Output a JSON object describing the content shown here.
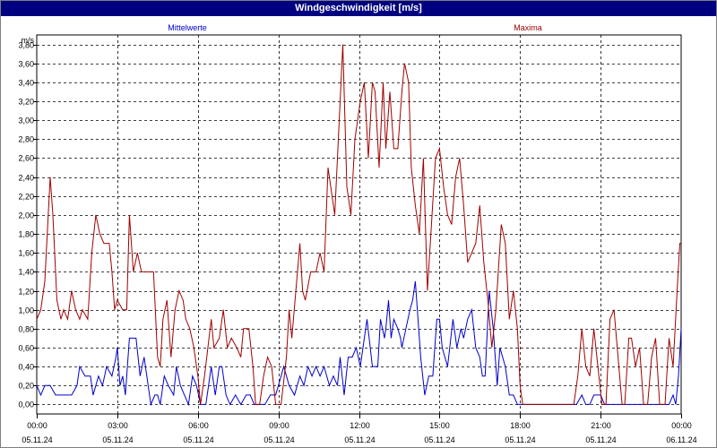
{
  "window": {
    "title": "Windgeschwindigkeit [m/s]"
  },
  "chart_data": {
    "type": "line",
    "title": "Windgeschwindigkeit [m/s]",
    "ylabel": "m/s",
    "xlabel": "",
    "ylim": [
      -0.1,
      3.9
    ],
    "xlim_hours": [
      0,
      24
    ],
    "grid": true,
    "yticks": [
      "0,00",
      "0,20",
      "0,40",
      "0,60",
      "0,80",
      "1,00",
      "1,20",
      "1,40",
      "1,60",
      "1,80",
      "2,00",
      "2,20",
      "2,40",
      "2,60",
      "2,80",
      "3,00",
      "3,20",
      "3,40",
      "3,60",
      "3,80"
    ],
    "ytick_values": [
      0,
      0.2,
      0.4,
      0.6,
      0.8,
      1.0,
      1.2,
      1.4,
      1.6,
      1.8,
      2.0,
      2.2,
      2.4,
      2.6,
      2.8,
      3.0,
      3.2,
      3.4,
      3.6,
      3.8
    ],
    "xticks": [
      {
        "hour": 0,
        "time": "00:00",
        "date": "05.11.24"
      },
      {
        "hour": 3,
        "time": "03:00",
        "date": "05.11.24"
      },
      {
        "hour": 6,
        "time": "06:00",
        "date": "05.11.24"
      },
      {
        "hour": 9,
        "time": "09:00",
        "date": "05.11.24"
      },
      {
        "hour": 12,
        "time": "12:00",
        "date": "05.11.24"
      },
      {
        "hour": 15,
        "time": "15:00",
        "date": "05.11.24"
      },
      {
        "hour": 18,
        "time": "18:00",
        "date": "05.11.24"
      },
      {
        "hour": 21,
        "time": "21:00",
        "date": "05.11.24"
      },
      {
        "hour": 24,
        "time": "00:00",
        "date": "06.11.24"
      }
    ],
    "series": [
      {
        "name": "Mittelwerte",
        "color": "#0000cc",
        "points": [
          [
            0.0,
            0.2
          ],
          [
            0.15,
            0.1
          ],
          [
            0.3,
            0.2
          ],
          [
            0.5,
            0.2
          ],
          [
            0.7,
            0.1
          ],
          [
            1.0,
            0.1
          ],
          [
            1.3,
            0.1
          ],
          [
            1.5,
            0.2
          ],
          [
            1.6,
            0.4
          ],
          [
            1.8,
            0.3
          ],
          [
            2.0,
            0.3
          ],
          [
            2.1,
            0.1
          ],
          [
            2.3,
            0.3
          ],
          [
            2.45,
            0.2
          ],
          [
            2.6,
            0.4
          ],
          [
            2.8,
            0.3
          ],
          [
            2.95,
            0.5
          ],
          [
            3.0,
            0.6
          ],
          [
            3.1,
            0.2
          ],
          [
            3.2,
            0.3
          ],
          [
            3.3,
            0.1
          ],
          [
            3.45,
            0.7
          ],
          [
            3.7,
            0.7
          ],
          [
            3.85,
            0.3
          ],
          [
            4.0,
            0.5
          ],
          [
            4.1,
            0.3
          ],
          [
            4.25,
            0.0
          ],
          [
            4.4,
            0.1
          ],
          [
            4.5,
            0.1
          ],
          [
            4.6,
            0.0
          ],
          [
            4.75,
            0.3
          ],
          [
            4.9,
            0.2
          ],
          [
            5.1,
            0.1
          ],
          [
            5.2,
            0.4
          ],
          [
            5.35,
            0.2
          ],
          [
            5.5,
            0.1
          ],
          [
            5.65,
            0.0
          ],
          [
            5.8,
            0.3
          ],
          [
            5.95,
            0.2
          ],
          [
            6.1,
            0.0
          ],
          [
            6.3,
            0.0
          ],
          [
            6.5,
            0.4
          ],
          [
            6.65,
            0.1
          ],
          [
            6.8,
            0.4
          ],
          [
            6.9,
            0.4
          ],
          [
            7.05,
            0.1
          ],
          [
            7.2,
            0.0
          ],
          [
            7.4,
            0.1
          ],
          [
            7.6,
            0.0
          ],
          [
            7.8,
            0.1
          ],
          [
            7.95,
            0.1
          ],
          [
            8.1,
            0.0
          ],
          [
            8.5,
            0.0
          ],
          [
            8.7,
            0.1
          ],
          [
            8.9,
            0.1
          ],
          [
            9.0,
            0.2
          ],
          [
            9.1,
            0.3
          ],
          [
            9.2,
            0.4
          ],
          [
            9.4,
            0.2
          ],
          [
            9.6,
            0.1
          ],
          [
            9.8,
            0.3
          ],
          [
            9.95,
            0.2
          ],
          [
            10.1,
            0.4
          ],
          [
            10.25,
            0.3
          ],
          [
            10.4,
            0.4
          ],
          [
            10.55,
            0.3
          ],
          [
            10.7,
            0.4
          ],
          [
            10.9,
            0.2
          ],
          [
            11.05,
            0.3
          ],
          [
            11.2,
            0.2
          ],
          [
            11.3,
            0.5
          ],
          [
            11.45,
            0.1
          ],
          [
            11.6,
            0.5
          ],
          [
            11.75,
            0.5
          ],
          [
            11.9,
            0.6
          ],
          [
            12.05,
            0.4
          ],
          [
            12.15,
            0.6
          ],
          [
            12.3,
            0.9
          ],
          [
            12.5,
            0.4
          ],
          [
            12.7,
            0.4
          ],
          [
            12.8,
            0.9
          ],
          [
            12.95,
            0.7
          ],
          [
            13.0,
            0.8
          ],
          [
            13.1,
            1.1
          ],
          [
            13.2,
            0.7
          ],
          [
            13.3,
            0.9
          ],
          [
            13.45,
            0.8
          ],
          [
            13.55,
            0.7
          ],
          [
            13.6,
            0.6
          ],
          [
            13.75,
            0.8
          ],
          [
            13.9,
            1.0
          ],
          [
            14.0,
            1.1
          ],
          [
            14.1,
            1.3
          ],
          [
            14.3,
            0.5
          ],
          [
            14.45,
            0.1
          ],
          [
            14.6,
            0.3
          ],
          [
            14.75,
            0.3
          ],
          [
            14.9,
            0.9
          ],
          [
            15.0,
            0.9
          ],
          [
            15.1,
            0.6
          ],
          [
            15.3,
            0.4
          ],
          [
            15.5,
            0.9
          ],
          [
            15.65,
            0.6
          ],
          [
            15.8,
            0.8
          ],
          [
            15.9,
            0.7
          ],
          [
            16.05,
            0.9
          ],
          [
            16.2,
            1.0
          ],
          [
            16.35,
            0.6
          ],
          [
            16.5,
            0.5
          ],
          [
            16.6,
            0.3
          ],
          [
            16.7,
            0.3
          ],
          [
            16.85,
            1.2
          ],
          [
            17.0,
            0.8
          ],
          [
            17.15,
            0.2
          ],
          [
            17.25,
            0.6
          ],
          [
            17.45,
            0.4
          ],
          [
            17.6,
            0.1
          ],
          [
            17.75,
            0.1
          ],
          [
            17.9,
            0.0
          ],
          [
            18.0,
            0.0
          ],
          [
            19.0,
            0.0
          ],
          [
            19.5,
            0.0
          ],
          [
            20.0,
            0.0
          ],
          [
            20.1,
            0.0
          ],
          [
            20.3,
            0.1
          ],
          [
            20.45,
            0.0
          ],
          [
            20.6,
            0.0
          ],
          [
            20.75,
            0.1
          ],
          [
            21.0,
            0.1
          ],
          [
            21.15,
            0.0
          ],
          [
            21.5,
            0.0
          ],
          [
            22.0,
            0.0
          ],
          [
            22.5,
            0.0
          ],
          [
            23.0,
            0.0
          ],
          [
            23.3,
            0.0
          ],
          [
            23.55,
            0.0
          ],
          [
            23.7,
            0.1
          ],
          [
            23.8,
            0.0
          ],
          [
            23.9,
            0.3
          ],
          [
            24.0,
            0.8
          ]
        ]
      },
      {
        "name": "Maxima",
        "color": "#a00000",
        "points": [
          [
            0.0,
            0.9
          ],
          [
            0.15,
            1.0
          ],
          [
            0.3,
            1.3
          ],
          [
            0.5,
            2.4
          ],
          [
            0.6,
            2.0
          ],
          [
            0.75,
            1.1
          ],
          [
            0.9,
            0.9
          ],
          [
            1.0,
            1.0
          ],
          [
            1.15,
            0.9
          ],
          [
            1.3,
            1.2
          ],
          [
            1.45,
            1.0
          ],
          [
            1.6,
            0.9
          ],
          [
            1.7,
            1.0
          ],
          [
            1.9,
            0.9
          ],
          [
            2.05,
            1.6
          ],
          [
            2.2,
            2.0
          ],
          [
            2.35,
            1.8
          ],
          [
            2.5,
            1.7
          ],
          [
            2.7,
            1.7
          ],
          [
            2.8,
            1.4
          ],
          [
            2.9,
            1.0
          ],
          [
            3.0,
            1.1
          ],
          [
            3.2,
            1.0
          ],
          [
            3.35,
            1.0
          ],
          [
            3.45,
            2.0
          ],
          [
            3.6,
            1.4
          ],
          [
            3.75,
            1.6
          ],
          [
            3.9,
            1.4
          ],
          [
            4.1,
            1.4
          ],
          [
            4.35,
            1.4
          ],
          [
            4.5,
            0.5
          ],
          [
            4.6,
            0.4
          ],
          [
            4.7,
            0.9
          ],
          [
            4.85,
            1.1
          ],
          [
            5.0,
            0.5
          ],
          [
            5.15,
            1.0
          ],
          [
            5.3,
            1.2
          ],
          [
            5.45,
            1.1
          ],
          [
            5.55,
            0.9
          ],
          [
            5.7,
            0.8
          ],
          [
            5.85,
            0.6
          ],
          [
            6.0,
            0.3
          ],
          [
            6.1,
            0.0
          ],
          [
            6.25,
            0.3
          ],
          [
            6.5,
            0.9
          ],
          [
            6.6,
            0.6
          ],
          [
            6.8,
            0.7
          ],
          [
            6.95,
            1.0
          ],
          [
            7.1,
            0.6
          ],
          [
            7.25,
            0.7
          ],
          [
            7.45,
            0.6
          ],
          [
            7.6,
            0.5
          ],
          [
            7.7,
            0.8
          ],
          [
            7.9,
            0.8
          ],
          [
            8.05,
            0.4
          ],
          [
            8.15,
            0.0
          ],
          [
            8.3,
            0.0
          ],
          [
            8.45,
            0.3
          ],
          [
            8.6,
            0.5
          ],
          [
            8.75,
            0.4
          ],
          [
            8.9,
            0.0
          ],
          [
            9.1,
            0.0
          ],
          [
            9.3,
            0.5
          ],
          [
            9.4,
            1.0
          ],
          [
            9.5,
            0.7
          ],
          [
            9.65,
            1.2
          ],
          [
            9.8,
            1.7
          ],
          [
            9.9,
            1.2
          ],
          [
            10.0,
            1.1
          ],
          [
            10.2,
            1.4
          ],
          [
            10.4,
            1.4
          ],
          [
            10.55,
            1.6
          ],
          [
            10.7,
            1.4
          ],
          [
            10.85,
            2.5
          ],
          [
            10.95,
            2.3
          ],
          [
            11.1,
            2.0
          ],
          [
            11.25,
            2.9
          ],
          [
            11.4,
            3.8
          ],
          [
            11.55,
            2.3
          ],
          [
            11.7,
            2.0
          ],
          [
            11.85,
            2.8
          ],
          [
            12.05,
            3.2
          ],
          [
            12.2,
            3.4
          ],
          [
            12.35,
            2.6
          ],
          [
            12.5,
            3.4
          ],
          [
            12.6,
            3.3
          ],
          [
            12.75,
            2.5
          ],
          [
            12.9,
            3.4
          ],
          [
            13.0,
            2.7
          ],
          [
            13.15,
            3.3
          ],
          [
            13.3,
            2.7
          ],
          [
            13.45,
            2.7
          ],
          [
            13.6,
            3.3
          ],
          [
            13.7,
            3.6
          ],
          [
            13.85,
            3.4
          ],
          [
            13.95,
            2.5
          ],
          [
            14.1,
            2.1
          ],
          [
            14.25,
            1.8
          ],
          [
            14.4,
            2.6
          ],
          [
            14.55,
            1.2
          ],
          [
            14.7,
            1.9
          ],
          [
            14.85,
            2.6
          ],
          [
            15.0,
            2.7
          ],
          [
            15.15,
            2.3
          ],
          [
            15.3,
            2.0
          ],
          [
            15.45,
            1.9
          ],
          [
            15.6,
            2.4
          ],
          [
            15.75,
            2.6
          ],
          [
            15.9,
            2.1
          ],
          [
            16.05,
            1.5
          ],
          [
            16.2,
            1.6
          ],
          [
            16.35,
            1.7
          ],
          [
            16.5,
            2.1
          ],
          [
            16.65,
            1.5
          ],
          [
            16.8,
            1.1
          ],
          [
            16.95,
            0.6
          ],
          [
            17.1,
            1.0
          ],
          [
            17.3,
            1.9
          ],
          [
            17.45,
            1.7
          ],
          [
            17.6,
            0.9
          ],
          [
            17.75,
            1.2
          ],
          [
            17.9,
            0.8
          ],
          [
            18.0,
            0.2
          ],
          [
            18.1,
            0.0
          ],
          [
            18.5,
            0.0
          ],
          [
            19.0,
            0.0
          ],
          [
            19.5,
            0.0
          ],
          [
            20.0,
            0.0
          ],
          [
            20.15,
            0.3
          ],
          [
            20.3,
            0.8
          ],
          [
            20.45,
            0.4
          ],
          [
            20.6,
            0.3
          ],
          [
            20.75,
            0.8
          ],
          [
            20.9,
            0.4
          ],
          [
            21.05,
            0.0
          ],
          [
            21.2,
            0.0
          ],
          [
            21.35,
            0.9
          ],
          [
            21.5,
            1.0
          ],
          [
            21.65,
            0.5
          ],
          [
            21.8,
            0.0
          ],
          [
            21.9,
            0.0
          ],
          [
            22.05,
            0.7
          ],
          [
            22.15,
            0.7
          ],
          [
            22.3,
            0.4
          ],
          [
            22.45,
            0.6
          ],
          [
            22.6,
            0.0
          ],
          [
            22.75,
            0.0
          ],
          [
            22.9,
            0.5
          ],
          [
            23.05,
            0.7
          ],
          [
            23.2,
            0.0
          ],
          [
            23.4,
            0.0
          ],
          [
            23.55,
            0.7
          ],
          [
            23.7,
            0.4
          ],
          [
            23.85,
            1.2
          ],
          [
            23.95,
            1.7
          ],
          [
            24.0,
            1.7
          ]
        ]
      }
    ]
  }
}
